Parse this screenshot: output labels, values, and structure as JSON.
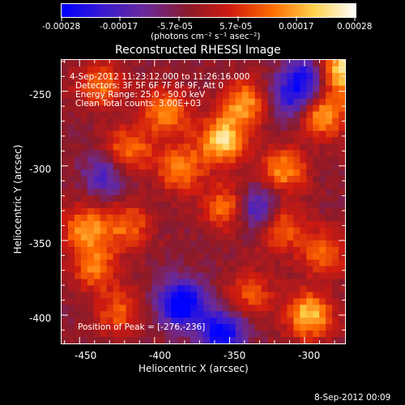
{
  "colorbar": {
    "tick_labels": [
      "-0.00028",
      "-0.00017",
      "-5.7e-05",
      "5.7e-05",
      "0.00017",
      "0.00028"
    ],
    "units": "(photons cm⁻² s⁻¹ asec⁻²)",
    "colors": [
      "#0000ff",
      "#3a1bd0",
      "#6b2a9a",
      "#8b1a2a",
      "#cf1a10",
      "#ff6a00",
      "#ffd04a",
      "#ffffff"
    ]
  },
  "plot": {
    "title": "Reconstructed RHESSI Image",
    "xlabel": "Heliocentric X (arcsec)",
    "ylabel": "Heliocentric Y (arcsec)",
    "xticks": [
      "-450",
      "-400",
      "-350",
      "-300"
    ],
    "yticks": [
      "-250",
      "-300",
      "-350",
      "-400"
    ]
  },
  "annotations": {
    "time_range": "4-Sep-2012 11:23:12.000 to 11:26:16.000",
    "detectors": "Detectors: 3F 5F 6F 7F 8F 9F, Att 0",
    "energy_range": "Energy Range: 25.0 - 50.0 keV",
    "clean_counts": "Clean    Total counts: 3.00E+03",
    "peak_position": "Position of Peak = [-276,-236]"
  },
  "footer": {
    "timestamp": "8-Sep-2012 00:09"
  },
  "chart_data": {
    "type": "heatmap",
    "title": "Reconstructed RHESSI Image",
    "xlabel": "Heliocentric X (arcsec)",
    "ylabel": "Heliocentric Y (arcsec)",
    "xlim": [
      -462,
      -273
    ],
    "ylim": [
      -419,
      -229
    ],
    "value_range": [
      -0.00028,
      0.00028
    ],
    "peak_position": [
      -276,
      -236
    ],
    "bright_sources": [
      {
        "x": -276,
        "y": -236,
        "value": 0.00028
      },
      {
        "x": -288,
        "y": -265,
        "value": 0.00022
      },
      {
        "x": -340,
        "y": -258,
        "value": 0.0002
      },
      {
        "x": -392,
        "y": -264,
        "value": 0.0002
      },
      {
        "x": -355,
        "y": -283,
        "value": 0.00026
      },
      {
        "x": -418,
        "y": -290,
        "value": 0.00018
      },
      {
        "x": -436,
        "y": -246,
        "value": 0.00016
      },
      {
        "x": -314,
        "y": -303,
        "value": 0.00019
      },
      {
        "x": -383,
        "y": -302,
        "value": 0.00018
      },
      {
        "x": -352,
        "y": -328,
        "value": 0.00017
      },
      {
        "x": -318,
        "y": -340,
        "value": 0.0002
      },
      {
        "x": -446,
        "y": -342,
        "value": 0.00019
      },
      {
        "x": -418,
        "y": -340,
        "value": 0.00015
      },
      {
        "x": -288,
        "y": -358,
        "value": 0.00016
      },
      {
        "x": -297,
        "y": -400,
        "value": 0.00024
      },
      {
        "x": -440,
        "y": -368,
        "value": 0.00016
      },
      {
        "x": -424,
        "y": -398,
        "value": 0.00014
      },
      {
        "x": -336,
        "y": -386,
        "value": 0.00013
      }
    ],
    "dark_sources": [
      {
        "x": -330,
        "y": -330,
        "value": -0.00022
      },
      {
        "x": -382,
        "y": -392,
        "value": -0.00028
      },
      {
        "x": -355,
        "y": -412,
        "value": -0.00024
      },
      {
        "x": -298,
        "y": -242,
        "value": -0.0002
      },
      {
        "x": -432,
        "y": -306,
        "value": -0.00014
      },
      {
        "x": -310,
        "y": -255,
        "value": -0.00015
      }
    ]
  }
}
